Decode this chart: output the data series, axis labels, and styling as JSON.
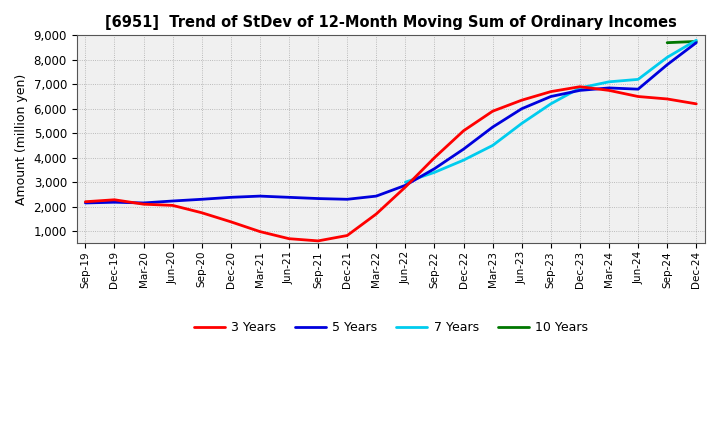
{
  "title": "[6951]  Trend of StDev of 12-Month Moving Sum of Ordinary Incomes",
  "ylabel": "Amount (million yen)",
  "ylim": [
    500,
    9000
  ],
  "yticks": [
    1000,
    2000,
    3000,
    4000,
    5000,
    6000,
    7000,
    8000,
    9000
  ],
  "background_color": "#ffffff",
  "grid_color": "#999999",
  "legend": [
    "3 Years",
    "5 Years",
    "7 Years",
    "10 Years"
  ],
  "legend_colors": [
    "#ff0000",
    "#0000dd",
    "#00ccee",
    "#007700"
  ],
  "x_labels": [
    "Sep-19",
    "Dec-19",
    "Mar-20",
    "Jun-20",
    "Sep-20",
    "Dec-20",
    "Mar-21",
    "Jun-21",
    "Sep-21",
    "Dec-21",
    "Mar-22",
    "Jun-22",
    "Sep-22",
    "Dec-22",
    "Mar-23",
    "Jun-23",
    "Sep-23",
    "Dec-23",
    "Mar-24",
    "Jun-24",
    "Sep-24",
    "Dec-24"
  ],
  "series_3y": [
    2200,
    2280,
    2100,
    2050,
    1750,
    1380,
    980,
    690,
    600,
    820,
    1700,
    2800,
    4000,
    5100,
    5900,
    6350,
    6700,
    6900,
    6750,
    6500,
    6400,
    6200
  ],
  "series_5y": [
    2150,
    2180,
    2150,
    2230,
    2300,
    2380,
    2430,
    2380,
    2330,
    2300,
    2430,
    2870,
    3550,
    4350,
    5250,
    6000,
    6500,
    6750,
    6850,
    6800,
    7800,
    8700
  ],
  "series_7y": [
    null,
    null,
    null,
    null,
    null,
    null,
    null,
    null,
    null,
    null,
    null,
    3000,
    3400,
    3900,
    4500,
    5400,
    6200,
    6850,
    7100,
    7200,
    8100,
    8800
  ],
  "series_10y": [
    null,
    null,
    null,
    null,
    null,
    null,
    null,
    null,
    null,
    null,
    null,
    null,
    null,
    null,
    null,
    null,
    null,
    null,
    null,
    null,
    8700,
    8750
  ]
}
